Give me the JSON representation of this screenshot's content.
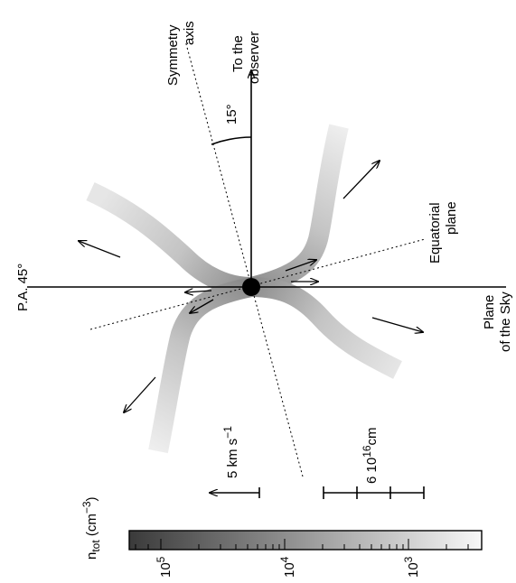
{
  "labels": {
    "symmetry_axis_1": "Symmetry",
    "symmetry_axis_2": "axis",
    "observer_1": "To the",
    "observer_2": "observer",
    "angle": "15°",
    "equatorial_1": "Equatorial",
    "equatorial_2": "plane",
    "pa": "P.A. 45°",
    "plane_sky_1": "Plane",
    "plane_sky_2": "of the Sky",
    "velocity_scale": "5 km s",
    "velocity_exp": "−1",
    "distance_scale_a": "6 10",
    "distance_scale_exp": "16",
    "distance_scale_b": "cm"
  },
  "colorbar": {
    "title_main": "n",
    "title_sub": "tot",
    "title_unit": " (cm",
    "title_unit_exp": "−3",
    "title_close": ")",
    "ticks": [
      {
        "base": "10",
        "exp": "5"
      },
      {
        "base": "10",
        "exp": "4"
      },
      {
        "base": "10",
        "exp": "3"
      }
    ],
    "gradient_dark": "#3a3a3a",
    "gradient_light": "#f8f8f8"
  },
  "colors": {
    "line": "#000000",
    "flow_light": "#ededed",
    "flow_mid": "#c8c8c8",
    "flow_dark": "#9a9a9a"
  }
}
